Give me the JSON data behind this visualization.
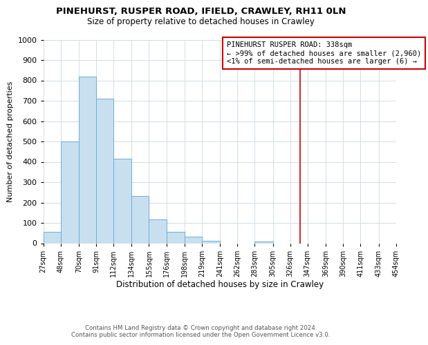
{
  "title1": "PINEHURST, RUSPER ROAD, IFIELD, CRAWLEY, RH11 0LN",
  "title2": "Size of property relative to detached houses in Crawley",
  "xlabel": "Distribution of detached houses by size in Crawley",
  "ylabel": "Number of detached properties",
  "bar_left_edges": [
    27,
    48,
    70,
    91,
    112,
    134,
    155,
    176,
    198,
    219,
    241,
    262,
    283,
    305,
    326
  ],
  "bar_heights": [
    55,
    500,
    820,
    710,
    415,
    232,
    117,
    57,
    32,
    13,
    0,
    0,
    10,
    0,
    0
  ],
  "bar_color": "#c8dff0",
  "bar_edge_color": "#6aafd6",
  "xlim": [
    27,
    454
  ],
  "ylim": [
    0,
    1000
  ],
  "yticks": [
    0,
    100,
    200,
    300,
    400,
    500,
    600,
    700,
    800,
    900,
    1000
  ],
  "xtick_labels": [
    "27sqm",
    "48sqm",
    "70sqm",
    "91sqm",
    "112sqm",
    "134sqm",
    "155sqm",
    "176sqm",
    "198sqm",
    "219sqm",
    "241sqm",
    "262sqm",
    "283sqm",
    "305sqm",
    "326sqm",
    "347sqm",
    "369sqm",
    "390sqm",
    "411sqm",
    "433sqm",
    "454sqm"
  ],
  "xtick_positions": [
    27,
    48,
    70,
    91,
    112,
    134,
    155,
    176,
    198,
    219,
    241,
    262,
    283,
    305,
    326,
    347,
    369,
    390,
    411,
    433,
    454
  ],
  "vline_x": 338,
  "vline_color": "#cc0000",
  "legend_title": "PINEHURST RUSPER ROAD: 338sqm",
  "legend_line1": "← >99% of detached houses are smaller (2,960)",
  "legend_line2": "<1% of semi-detached houses are larger (6) →",
  "footer1": "Contains HM Land Registry data © Crown copyright and database right 2024.",
  "footer2": "Contains public sector information licensed under the Open Government Licence v3.0.",
  "background_color": "#ffffff",
  "grid_color": "#d0dde8"
}
